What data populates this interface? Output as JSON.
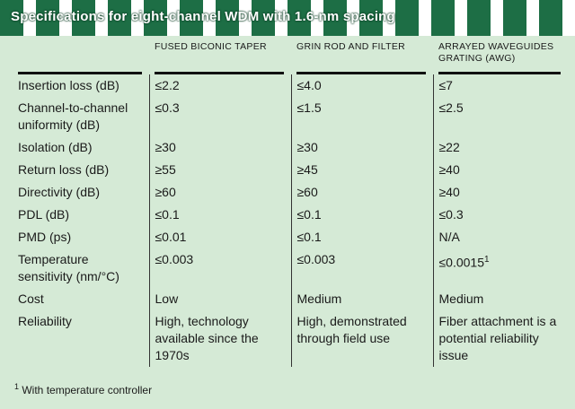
{
  "header": {
    "title": "Specifications for eight-channel WDM with 1.6-nm spacing"
  },
  "table": {
    "columns": [
      "FUSED BICONIC TAPER",
      "GRIN ROD AND FILTER",
      "ARRAYED WAVEGUIDES GRATING (AWG)"
    ],
    "rows": [
      [
        "Insertion loss (dB)",
        "≤2.2",
        "≤4.0",
        "≤7"
      ],
      [
        "Channel-to-channel uniformity (dB)",
        "≤0.3",
        "≤1.5",
        "≤2.5"
      ],
      [
        "Isolation (dB)",
        "≥30",
        "≥30",
        "≥22"
      ],
      [
        "Return loss (dB)",
        "≥55",
        "≥45",
        "≥40"
      ],
      [
        "Directivity (dB)",
        "≥60",
        "≥60",
        "≥40"
      ],
      [
        "PDL (dB)",
        "≤0.1",
        "≤0.1",
        "≤0.3"
      ],
      [
        "PMD (ps)",
        "≤0.01",
        "≤0.1",
        "N/A"
      ],
      [
        "Temperature sensitivity (nm/°C)",
        "≤0.003",
        "≤0.003",
        "≤0.0015"
      ],
      [
        "Cost",
        "Low",
        "Medium",
        "Medium"
      ],
      [
        "Reliability",
        "High, technology available since the 1970s",
        "High, demonstrated through field use",
        "Fiber attachment is a potential reliability issue"
      ]
    ],
    "footnote": {
      "marker": "1",
      "row": 7,
      "column": 3,
      "text": "With temperature controller"
    }
  }
}
